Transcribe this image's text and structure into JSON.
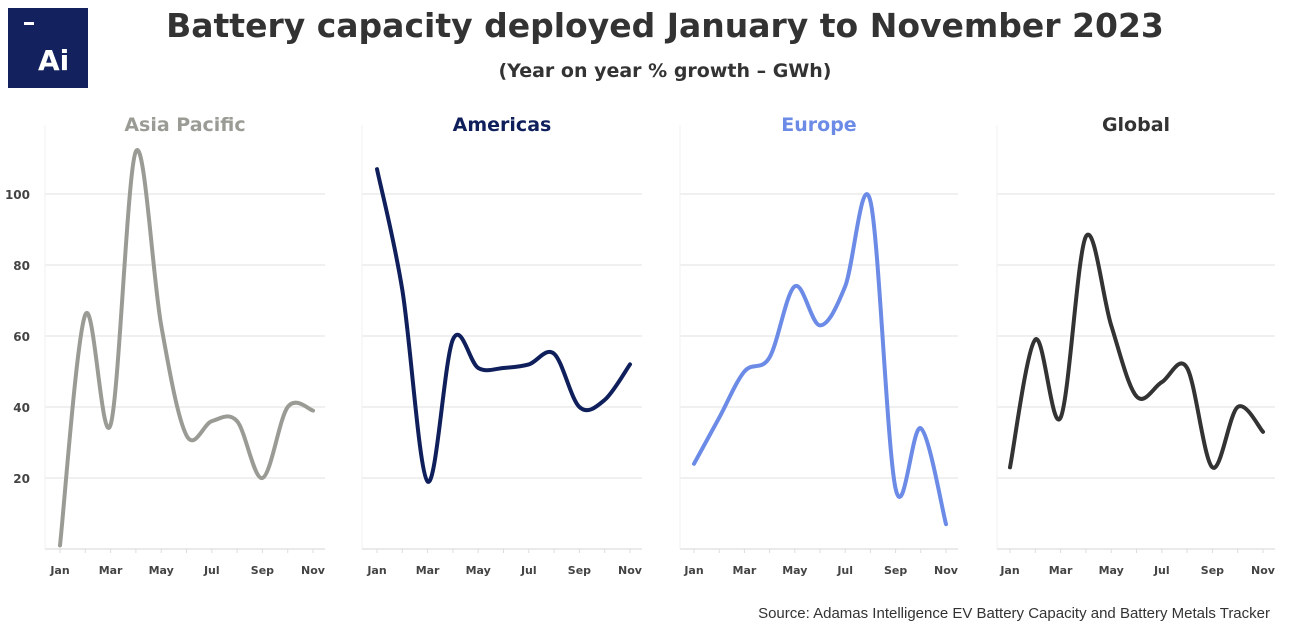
{
  "logo": {
    "text": "Ai",
    "color": "#13225f"
  },
  "title": "Battery capacity deployed January to November 2023",
  "subtitle": "(Year on year % growth – GWh)",
  "source": "Source: Adamas Intelligence EV Battery Capacity and Battery Metals Tracker",
  "chart_data": {
    "type": "line",
    "x": [
      "Jan",
      "Feb",
      "Mar",
      "Apr",
      "May",
      "Jun",
      "Jul",
      "Aug",
      "Sep",
      "Oct",
      "Nov"
    ],
    "x_tick_labels": [
      "Jan",
      "Mar",
      "May",
      "Jul",
      "Sep",
      "Nov"
    ],
    "y_ticks": [
      20,
      40,
      60,
      80,
      100
    ],
    "ylim": [
      0,
      115
    ],
    "grid": "horizontal",
    "smoothed": true,
    "panels": [
      {
        "title": "Asia Pacific",
        "color": "#9b9b96",
        "values": [
          1,
          66,
          35,
          112,
          63,
          32,
          36,
          36,
          20,
          40,
          39
        ]
      },
      {
        "title": "Americas",
        "color": "#0f1f5c",
        "values": [
          107,
          73,
          19,
          59,
          51,
          51,
          52,
          55,
          40,
          42,
          52
        ]
      },
      {
        "title": "Europe",
        "color": "#6b8be6",
        "values": [
          24,
          37,
          50,
          54,
          74,
          63,
          74,
          98,
          17,
          34,
          7
        ]
      },
      {
        "title": "Global",
        "color": "#333333",
        "values": [
          23,
          59,
          37,
          88,
          63,
          43,
          47,
          51,
          23,
          40,
          33
        ]
      }
    ]
  }
}
